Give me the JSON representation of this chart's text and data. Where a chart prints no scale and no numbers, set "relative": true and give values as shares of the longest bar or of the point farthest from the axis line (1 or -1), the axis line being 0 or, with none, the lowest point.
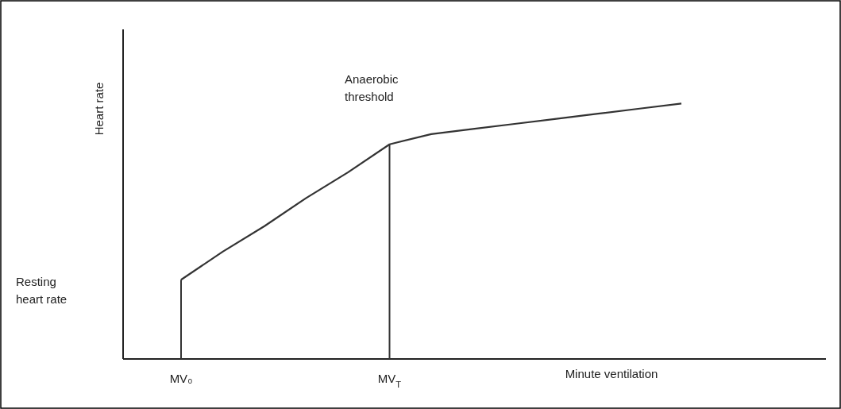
{
  "chart_data": {
    "type": "line",
    "relative": true,
    "xlabel": "Minute ventilation",
    "ylabel": "Heart rate",
    "categories": [
      "MV₀",
      null,
      null,
      null,
      null,
      "MV$_{T}$",
      null,
      null,
      null,
      null,
      null,
      null,
      null
    ],
    "tick_labels": "x",
    "series": [
      {
        "color": "#333333",
        "values": [
          0.31,
          0.42,
          0.52,
          0.63,
          0.73,
          0.84,
          0.88,
          0.9,
          0.92,
          0.94,
          0.96,
          0.98,
          1
        ]
      },
      {
        "type": "bar",
        "color": "#333333",
        "values": [
          0.31,
          null,
          null,
          null,
          null,
          0.84,
          null,
          null,
          null,
          null,
          null,
          null,
          null
        ]
      }
    ],
    "annotations": [
      "Anaerobic threshold",
      "Resting heart rate"
    ],
    "marker": "none",
    "line_style": "solid"
  }
}
